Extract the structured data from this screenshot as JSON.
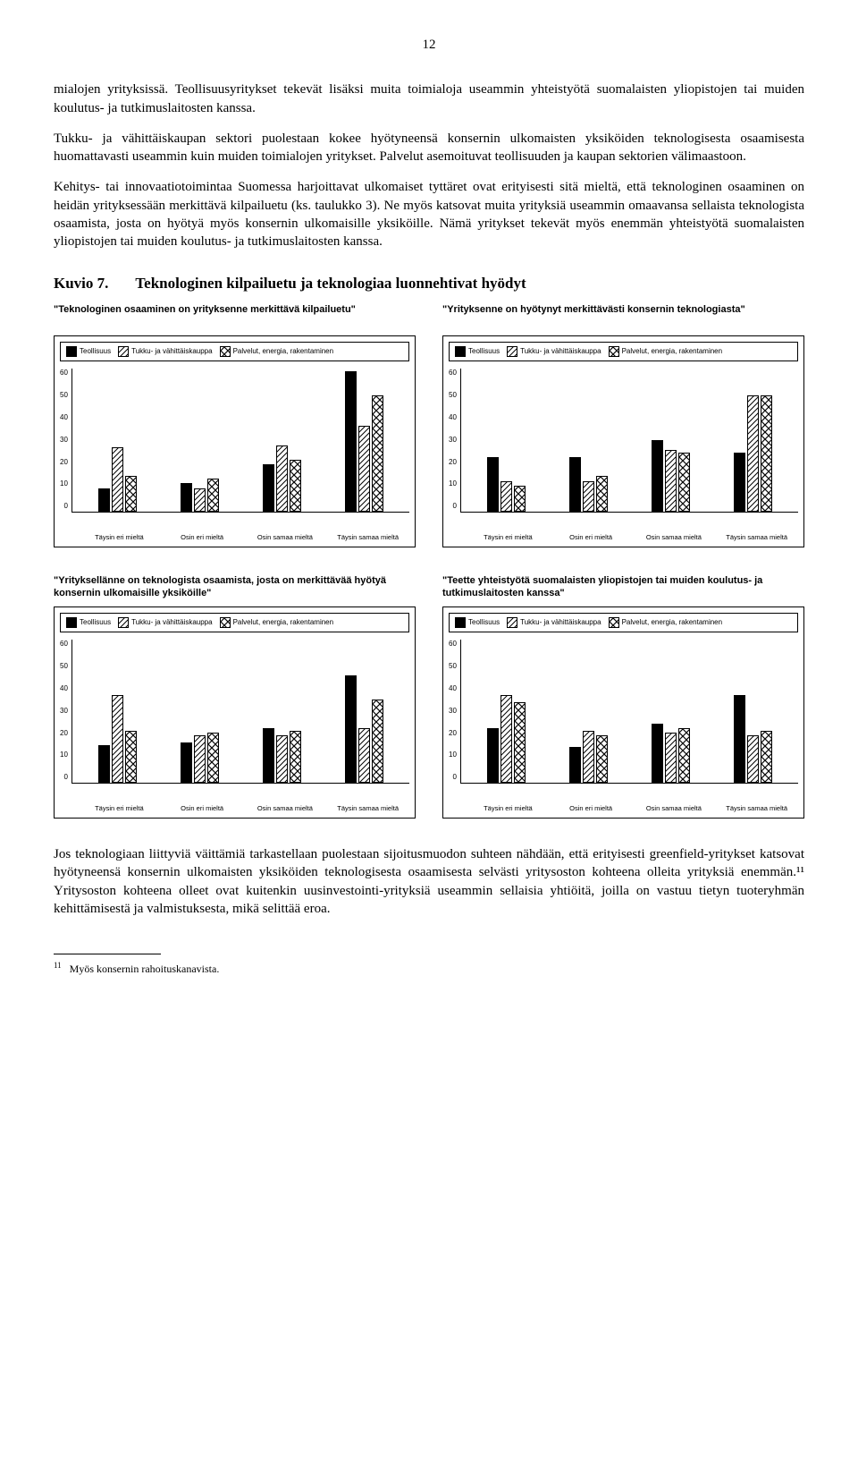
{
  "page_number": "12",
  "paragraphs": {
    "p1": "mialojen yrityksissä. Teollisuusyritykset tekevät lisäksi muita toimialoja useammin yhteistyötä suomalaisten yliopistojen tai muiden koulutus- ja tutkimuslaitosten kanssa.",
    "p2": "Tukku- ja vähittäiskaupan sektori puolestaan kokee hyötyneensä konsernin ulkomaisten yksiköiden teknologisesta osaamisesta huomattavasti useammin kuin muiden toimialojen yritykset. Palvelut asemoituvat teollisuuden ja kaupan sektorien välimaastoon.",
    "p3": "Kehitys- tai innovaatiotoimintaa Suomessa harjoittavat ulkomaiset tyttäret ovat erityisesti sitä mieltä, että teknologinen osaaminen on heidän yrityksessään merkittävä kilpailuetu (ks. taulukko 3). Ne myös katsovat muita yrityksiä useammin omaavansa sellaista teknologista osaamista, josta on hyötyä myös konsernin ulkomaisille yksiköille. Nämä yritykset tekevät myös enemmän yhteistyötä suomalaisten yliopistojen tai muiden koulutus- ja tutkimuslaitosten kanssa.",
    "p4": "Jos teknologiaan liittyviä väittämiä tarkastellaan puolestaan sijoitusmuodon suhteen nähdään, että erityisesti greenfield-yritykset katsovat hyötyneensä konsernin ulkomaisten yksiköiden teknologisesta osaamisesta selvästi yritysoston kohteena olleita yrityksiä enemmän.¹¹ Yritysoston kohteena olleet ovat kuitenkin uusinvestointi-yrityksiä useammin sellaisia yhtiöitä, joilla on vastuu tietyn tuoteryhmän kehittämisestä ja valmistuksesta, mikä selittää eroa."
  },
  "kuvio": {
    "label": "Kuvio 7.",
    "title": "Teknologinen kilpailuetu ja teknologiaa luonnehtivat hyödyt"
  },
  "legend_items": [
    "Teollisuus",
    "Tukku- ja vähittäiskauppa",
    "Palvelut, energia, rakentaminen"
  ],
  "patterns": {
    "solid": "pat-solid",
    "diag": "pat-diag",
    "check": "pat-check"
  },
  "ymax": 60,
  "yticks": [
    "60",
    "50",
    "40",
    "30",
    "20",
    "10",
    "0"
  ],
  "xlabels": [
    "Täysin eri mieltä",
    "Osin eri mieltä",
    "Osin samaa mieltä",
    "Täysin samaa mieltä"
  ],
  "charts": [
    {
      "title": "\"Teknologinen osaaminen on yrityksenne merkittävä kilpailuetu\"",
      "groups": [
        [
          10,
          27,
          15
        ],
        [
          12,
          10,
          14
        ],
        [
          20,
          28,
          22
        ],
        [
          59,
          36,
          49
        ]
      ]
    },
    {
      "title": "\"Yrityksenne on hyötynyt merkittävästi konsernin teknologiasta\"",
      "groups": [
        [
          23,
          13,
          11
        ],
        [
          23,
          13,
          15
        ],
        [
          30,
          26,
          25
        ],
        [
          25,
          49,
          49
        ]
      ]
    },
    {
      "title": "\"Yrityksellänne on teknologista osaamista, josta on merkittävää hyötyä konsernin ulkomaisille yksiköille\"",
      "groups": [
        [
          16,
          37,
          22
        ],
        [
          17,
          20,
          21
        ],
        [
          23,
          20,
          22
        ],
        [
          45,
          23,
          35
        ]
      ]
    },
    {
      "title": "\"Teette yhteistyötä suomalaisten yliopistojen tai muiden koulutus- ja tutkimuslaitosten kanssa\"",
      "groups": [
        [
          23,
          37,
          34
        ],
        [
          15,
          22,
          20
        ],
        [
          25,
          21,
          23
        ],
        [
          37,
          20,
          22
        ]
      ]
    }
  ],
  "footnote": {
    "num": "11",
    "text": "Myös konsernin rahoituskanavista."
  },
  "colors": {
    "text": "#000000",
    "bg": "#ffffff",
    "border": "#000000"
  }
}
